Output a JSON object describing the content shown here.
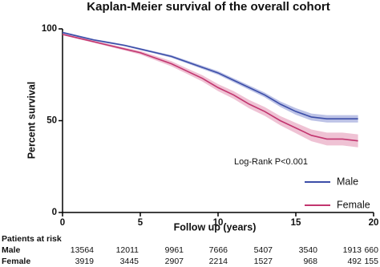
{
  "chart_data": {
    "type": "line",
    "title": "Kaplan-Meier survival of the overall cohort",
    "xlabel": "Follow up (years)",
    "ylabel": "Percent survival",
    "annotation": "Log-Rank P<0.001",
    "x": [
      0,
      1,
      2,
      3,
      4,
      5,
      6,
      7,
      8,
      9,
      10,
      11,
      12,
      13,
      14,
      15,
      16,
      17,
      18,
      19
    ],
    "series": [
      {
        "name": "Male",
        "color": "#3c4ea8",
        "band_color": "#8f9ad6",
        "values": [
          98,
          96,
          94,
          92.5,
          91,
          89,
          87,
          85,
          82,
          79,
          76,
          72,
          68,
          64,
          59,
          55,
          52,
          51,
          51,
          51
        ],
        "lower": [
          97.5,
          95.5,
          93.5,
          92,
          90.5,
          88.5,
          86.4,
          84.3,
          81.2,
          78.1,
          75,
          70.9,
          66.8,
          62.7,
          57.5,
          53.2,
          50.1,
          49,
          49,
          49
        ],
        "upper": [
          98.5,
          96.5,
          94.5,
          93,
          91.5,
          89.5,
          87.6,
          85.7,
          82.8,
          79.9,
          77,
          73.1,
          69.2,
          65.3,
          60.5,
          56.8,
          53.9,
          53,
          53,
          53
        ]
      },
      {
        "name": "Female",
        "color": "#c2356f",
        "band_color": "#e59ab8",
        "values": [
          97,
          95,
          93,
          91,
          89,
          87,
          84,
          81,
          77,
          73,
          68,
          64,
          59,
          55,
          50,
          46,
          42,
          40,
          40,
          39
        ],
        "lower": [
          96.5,
          94.5,
          92.4,
          90.3,
          88.2,
          86,
          82.8,
          79.6,
          75.5,
          71.3,
          66.1,
          61.9,
          56.7,
          52.6,
          47.5,
          43.2,
          38.8,
          36.5,
          36.5,
          35.5
        ],
        "upper": [
          97.5,
          95.5,
          93.6,
          91.7,
          89.8,
          88,
          85.2,
          82.4,
          78.5,
          74.7,
          69.9,
          66.1,
          61.3,
          57.4,
          52.5,
          48.8,
          45.2,
          43.5,
          43.5,
          42.5
        ]
      }
    ],
    "xlim": [
      0,
      20
    ],
    "ylim": [
      0,
      100
    ],
    "xticks": [
      0,
      5,
      10,
      15,
      20
    ],
    "yticks": [
      0,
      50,
      100
    ],
    "legend": "lower-right",
    "risk_table": {
      "title": "Patients at risk",
      "rows": [
        {
          "name": "Male",
          "values": [
            13564,
            12011,
            9961,
            7666,
            5407,
            3540,
            1913,
            660
          ]
        },
        {
          "name": "Female",
          "values": [
            3919,
            3445,
            2907,
            2214,
            1527,
            968,
            492,
            155
          ]
        }
      ]
    }
  }
}
